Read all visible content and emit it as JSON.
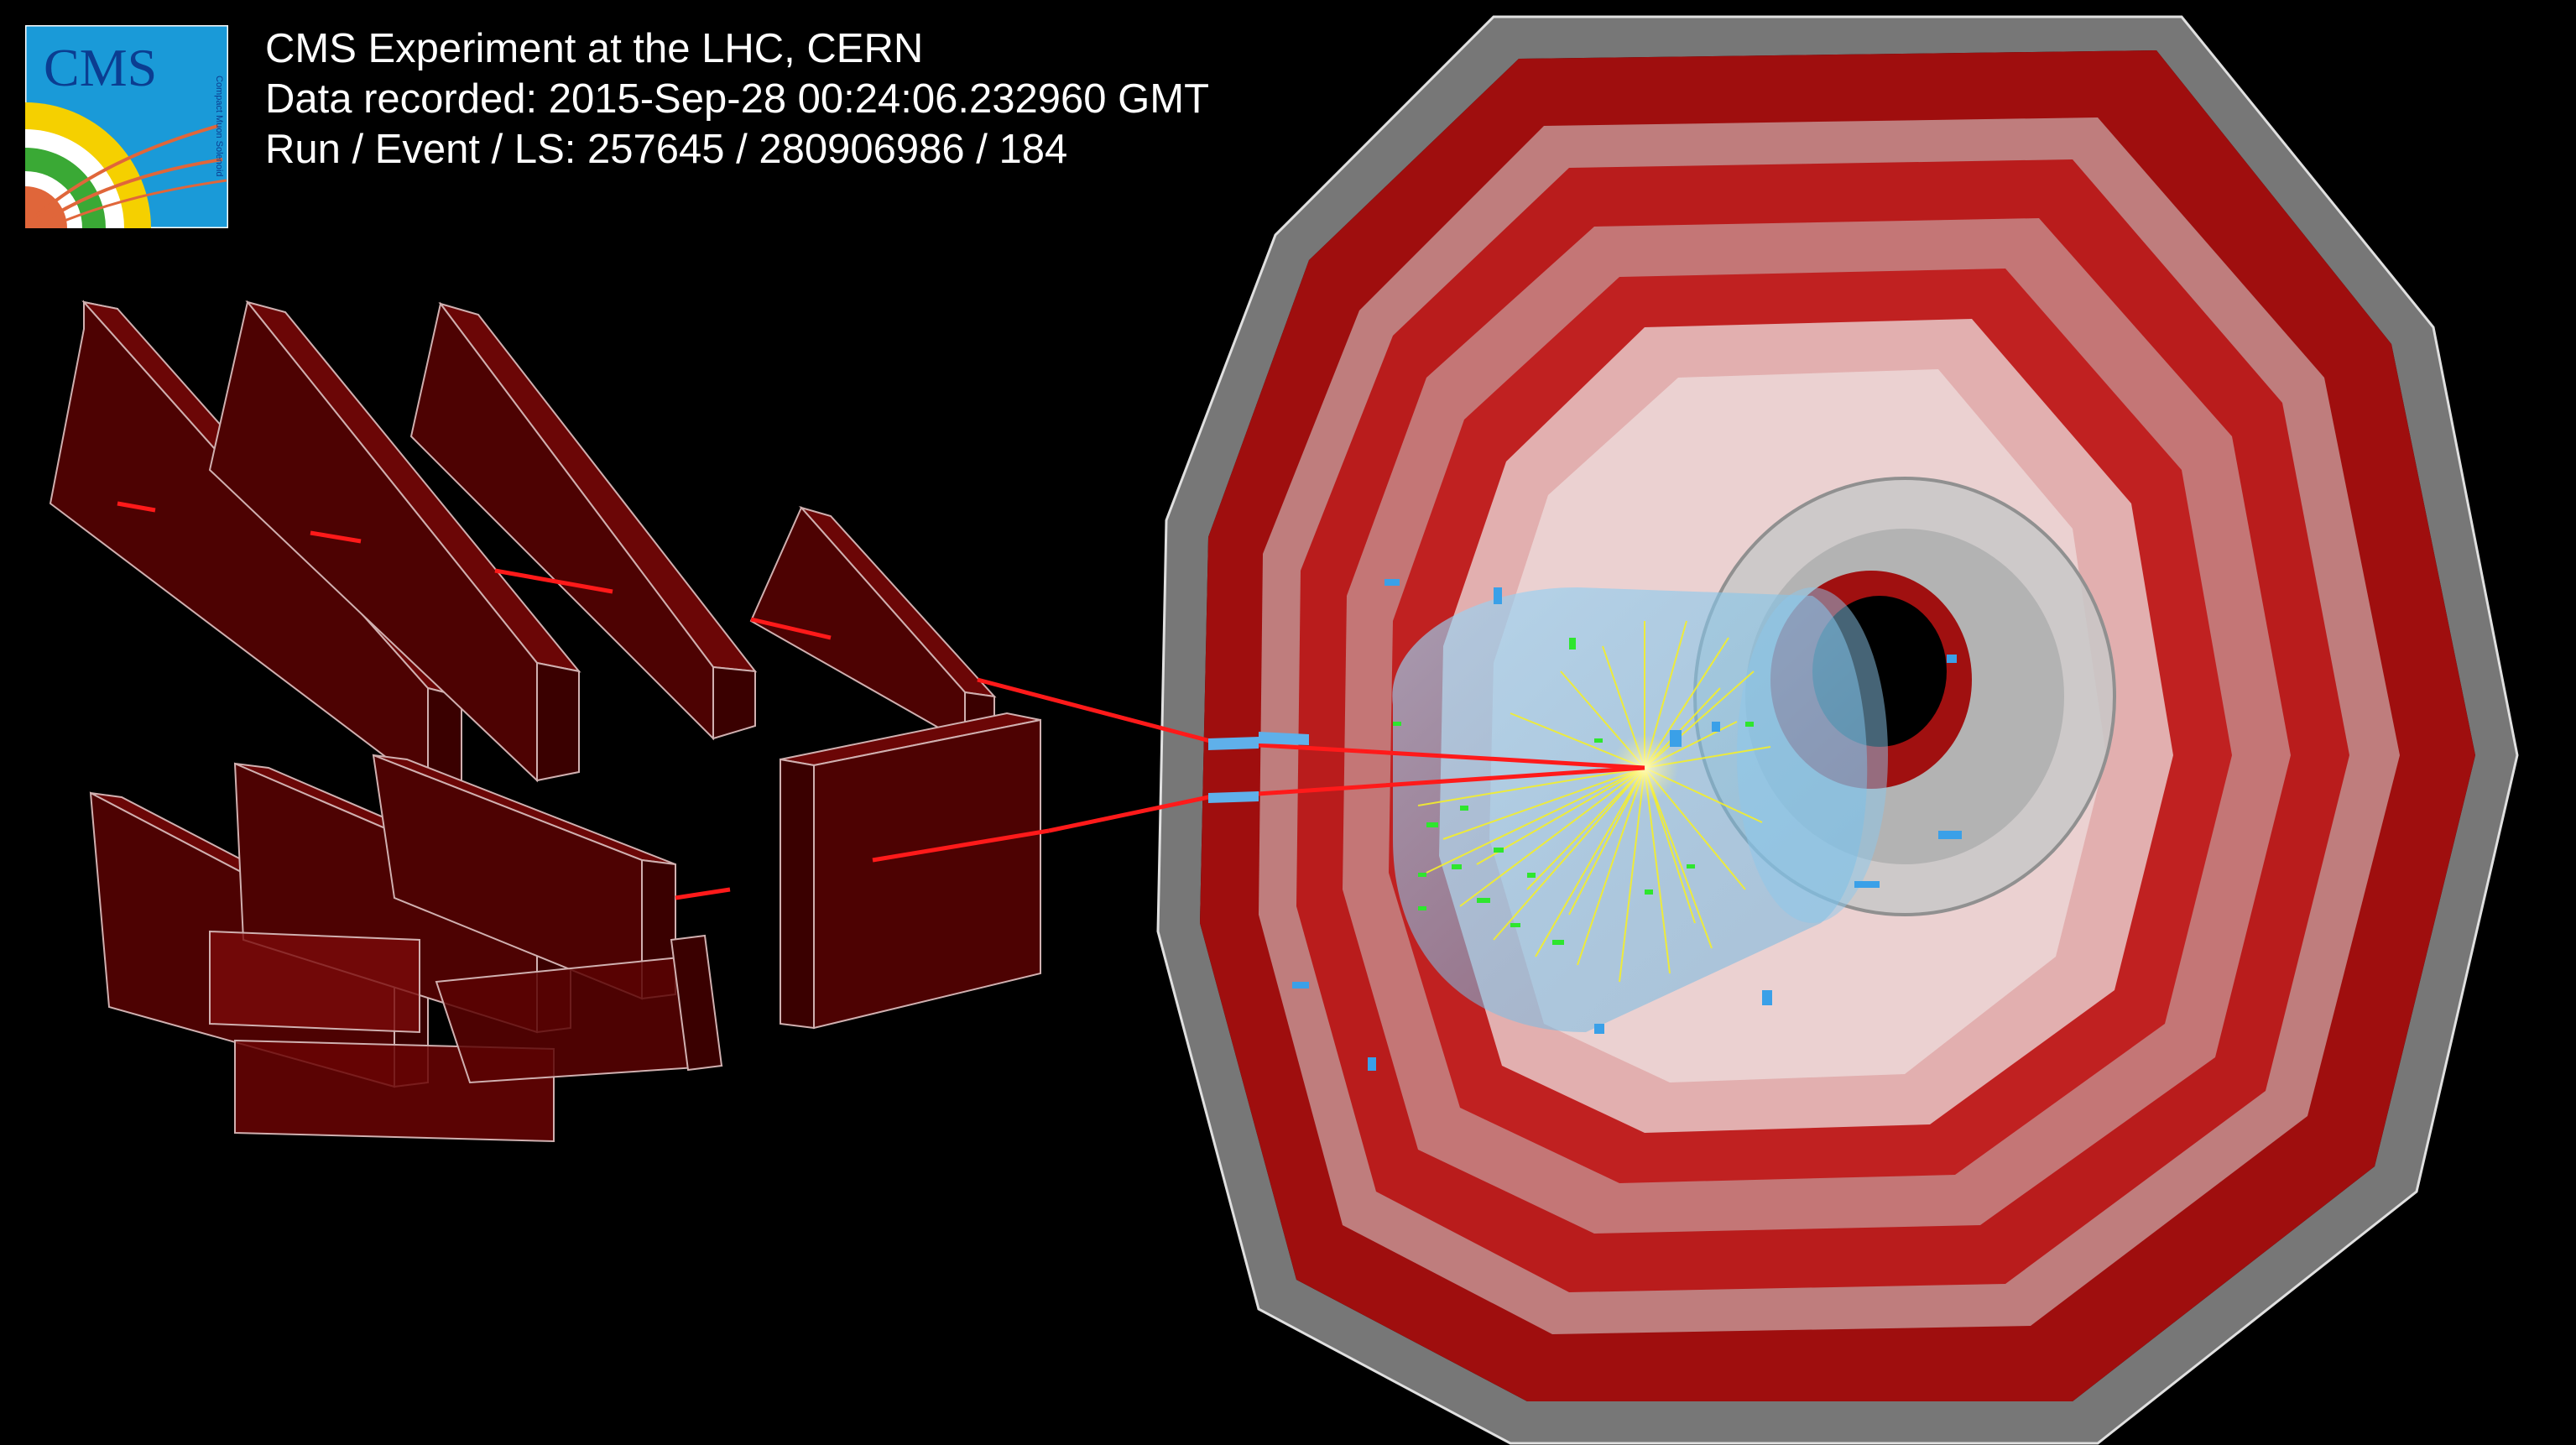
{
  "logo": {
    "text": "CMS",
    "subtext": "Compact Muon Solenoid",
    "colors": {
      "background": "#1a9ad8",
      "ring_yellow": "#f5d000",
      "ring_green": "#3aa935",
      "ring_white": "#ffffff",
      "tracks": "#e0663a",
      "text": "#0b3d91"
    }
  },
  "info": {
    "experiment": "CMS Experiment at the LHC, CERN",
    "recorded": "Data recorded: 2015-Sep-28 00:24:06.232960 GMT",
    "run_event": "Run / Event / LS: 257645 / 280906986 / 184"
  },
  "colors": {
    "background": "#000000",
    "muon_chamber": "#5a0000",
    "muon_chamber_edge": "#c9a0a0",
    "muon_track": "#ff1a1a",
    "return_yoke": "#c01515",
    "barrel_gray": "#b8b8b8",
    "hcal_blue": "#7fc6f0",
    "tracks_yellow": "#f4ee2a",
    "deposits_green": "#2ee62e",
    "cells_blue": "#3aa0e8"
  }
}
